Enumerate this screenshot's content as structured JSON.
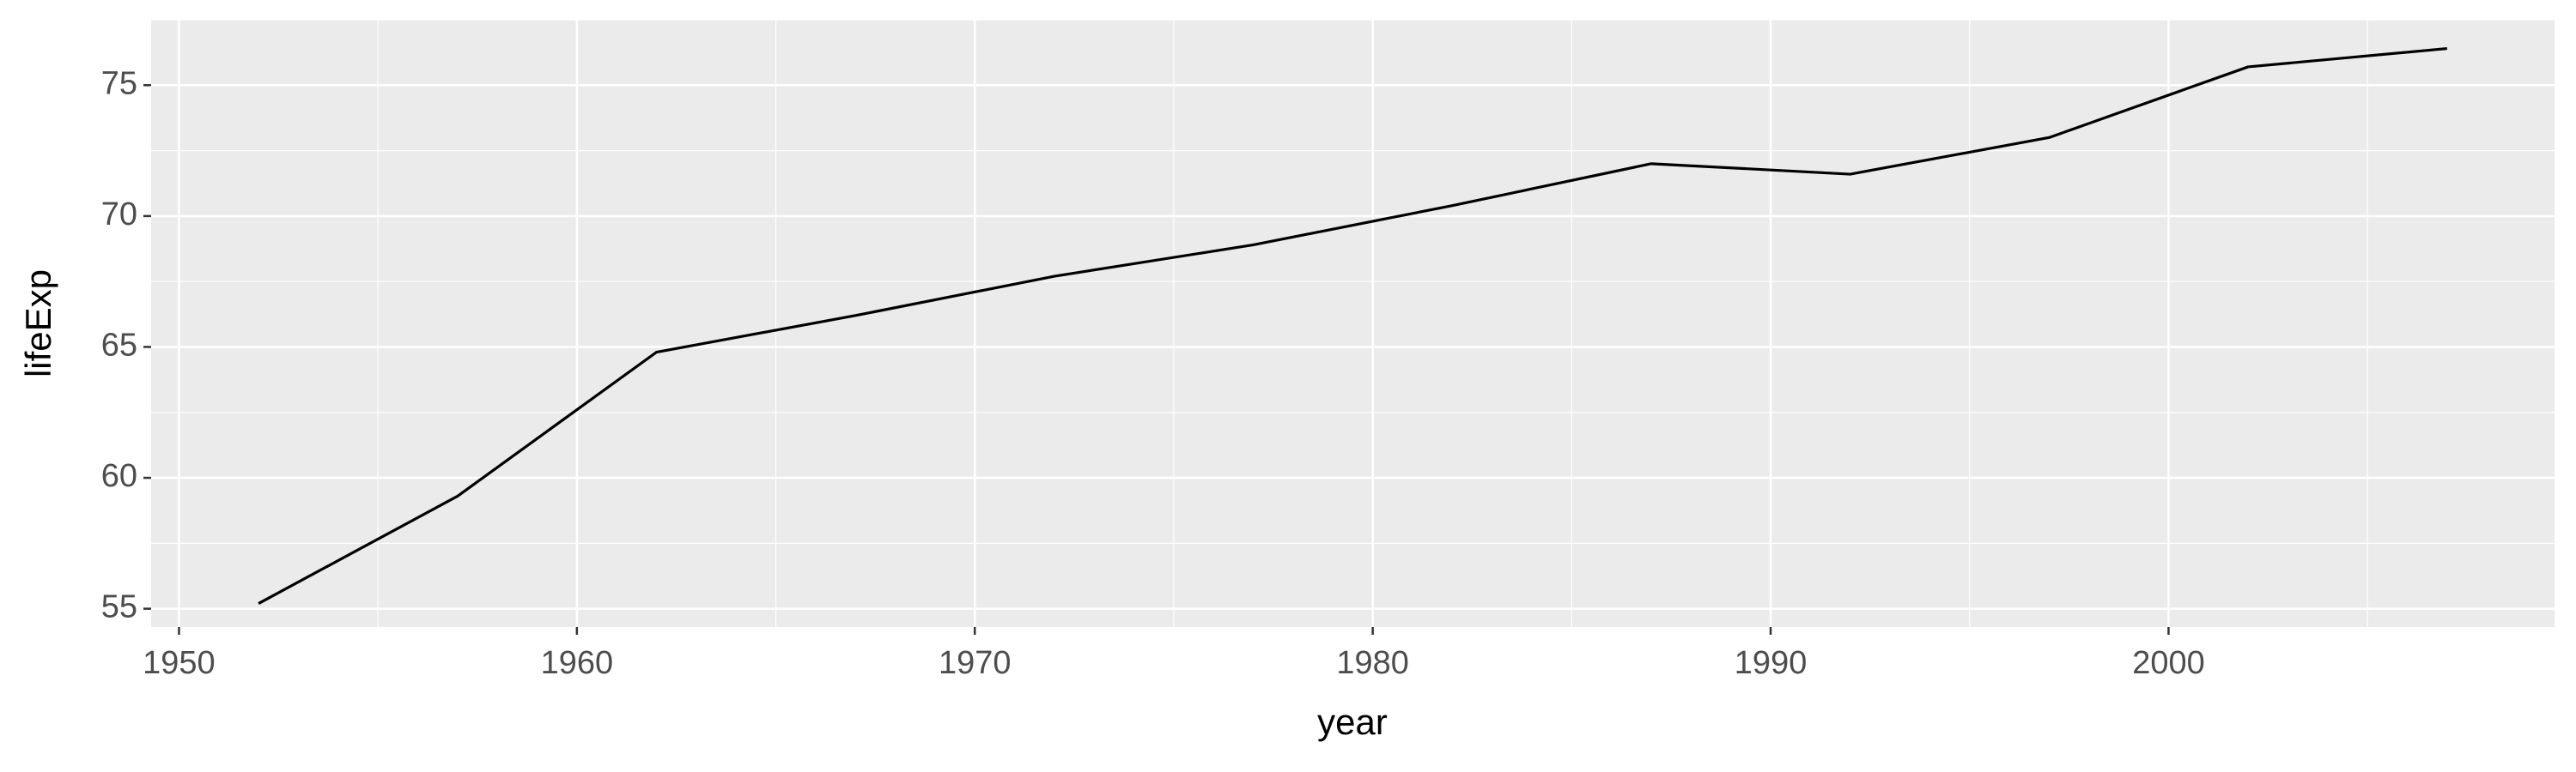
{
  "chart_data": {
    "type": "line",
    "x_label": "year",
    "y_label": "lifeExp",
    "x": [
      1952,
      1957,
      1962,
      1967,
      1972,
      1977,
      1982,
      1987,
      1992,
      1997,
      2002,
      2007
    ],
    "series": [
      {
        "color": "#000000",
        "values": [
          55.2,
          59.3,
          64.8,
          66.2,
          67.7,
          68.9,
          70.4,
          72.0,
          71.6,
          73.0,
          75.7,
          76.4
        ]
      }
    ],
    "xlim": [
      1949.3,
      2009.7
    ],
    "xticks": [
      1950,
      1960,
      1970,
      1980,
      1990,
      2000
    ],
    "ylim": [
      54.3,
      77.5
    ],
    "yticks": [
      55,
      60,
      65,
      70,
      75
    ],
    "grid": true
  }
}
